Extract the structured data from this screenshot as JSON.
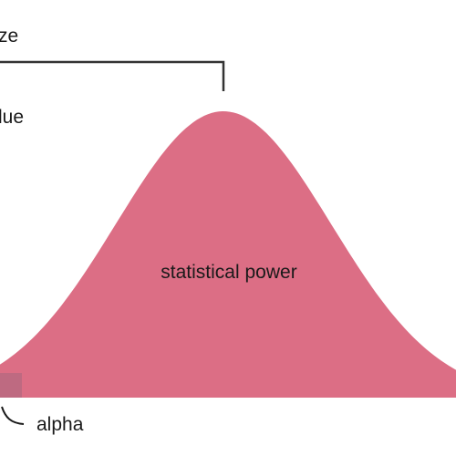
{
  "labels": {
    "effect_size": "ze",
    "value": "lue",
    "curve": "statistical power",
    "alpha": "alpha"
  },
  "colors": {
    "curve_fill": "#dc6e85",
    "alpha_region": "#b86a80",
    "bracket": "#333333",
    "text": "#1a1a1a"
  }
}
